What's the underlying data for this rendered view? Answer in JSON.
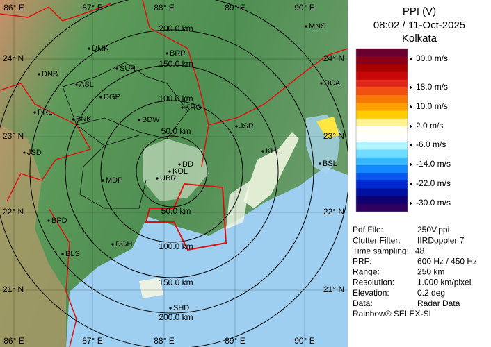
{
  "map": {
    "lon_labels": [
      "86° E",
      "87° E",
      "88° E",
      "89° E",
      "90° E"
    ],
    "lat_labels": [
      "24° N",
      "23° N",
      "22° N",
      "21° N"
    ],
    "range_labels": [
      "50.0 km",
      "100.0 km",
      "150.0 km",
      "200.0 km"
    ],
    "lower_range_labels": [
      "50.0 km",
      "100.0 km",
      "150.0 km",
      "200.0 km"
    ],
    "cities": [
      "MNS",
      "DMK",
      "BRP",
      "DNB",
      "SUR",
      "ASL",
      "DCA",
      "DGP",
      "KRG",
      "PRL",
      "BNK",
      "BDW",
      "JSR",
      "KHL",
      "JSD",
      "BSL",
      "DD",
      "KOL",
      "UBR",
      "MDP",
      "BPD",
      "DGH",
      "BLS",
      "SHD"
    ]
  },
  "panel": {
    "title": "PPI (V)",
    "time": "08:02 / 11-Oct-2025",
    "site": "Kolkata",
    "colorbar": {
      "colors": [
        "#6a0030",
        "#8a0018",
        "#a80000",
        "#c80808",
        "#e02818",
        "#f05010",
        "#f87808",
        "#ffa000",
        "#ffcc00",
        "#fff090",
        "#fffff4",
        "#ffffff",
        "#b0f4ff",
        "#70dcff",
        "#38b8ff",
        "#1488ff",
        "#0858f0",
        "#0028d0",
        "#0010a0",
        "#100070",
        "#300060"
      ],
      "labels": [
        "30.0 m/s",
        "18.0 m/s",
        "10.0 m/s",
        "2.0 m/s",
        "-6.0 m/s",
        "-14.0 m/s",
        "-22.0 m/s",
        "-30.0 m/s"
      ]
    },
    "info": [
      [
        "Pdf File:",
        "250V.ppi"
      ],
      [
        "Clutter Filter:",
        "IIRDoppler 7"
      ],
      [
        "Time sampling:",
        "48"
      ],
      [
        "PRF:",
        "600 Hz / 450 Hz"
      ],
      [
        "Range:",
        "250 km"
      ],
      [
        "Resolution:",
        "1.000 km/pixel"
      ],
      [
        "Elevation:",
        "0.2 deg"
      ],
      [
        "Data:",
        "Radar Data"
      ]
    ],
    "footer": "Rainbow® SELEX-SI"
  }
}
